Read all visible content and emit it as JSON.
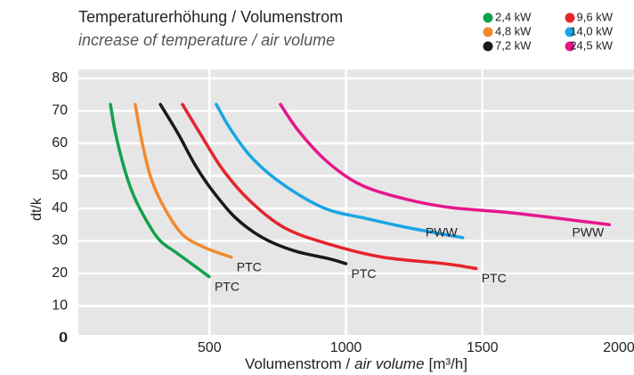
{
  "chart_data": {
    "type": "line",
    "title": "Temperaturerhöhung / Volumenstrom",
    "subtitle": "increase of temperature / air volume",
    "ylabel": "dt/k",
    "xlabel_parts": [
      "Volumenstrom /",
      "air volume",
      "[m³/h]"
    ],
    "xlim": [
      0,
      2000
    ],
    "xticks": [
      0,
      500,
      1000,
      1500,
      2000
    ],
    "ylim": [
      0,
      80
    ],
    "yticks": [
      0,
      10,
      20,
      30,
      40,
      50,
      60,
      70,
      80
    ],
    "grid": true,
    "legend": "top-right",
    "series": [
      {
        "name": "2,4 kW",
        "color": "#12a14b",
        "end_label": "PTC",
        "x": [
          137,
          156,
          189,
          222,
          271,
          320,
          385,
          499
        ],
        "values": [
          72,
          63,
          52,
          44,
          36,
          30,
          26,
          19
        ]
      },
      {
        "name": "4,8 kW",
        "color": "#f28a2e",
        "end_label": "PTC",
        "x": [
          228,
          254,
          287,
          336,
          401,
          482,
          580
        ],
        "values": [
          72,
          60,
          49,
          40,
          32,
          28,
          25
        ]
      },
      {
        "name": "7,2 kW",
        "color": "#1a1a1a",
        "end_label": "PTC",
        "x": [
          320,
          385,
          450,
          515,
          597,
          695,
          809,
          939,
          1000
        ],
        "values": [
          72,
          63,
          53,
          45,
          37,
          31,
          27,
          24.5,
          23
        ]
      },
      {
        "name": "9,6 kW",
        "color": "#e5242b",
        "end_label": "PTC",
        "x": [
          401,
          466,
          548,
          646,
          776,
          939,
          1135,
          1363,
          1477
        ],
        "values": [
          72,
          63,
          52,
          42.5,
          34,
          29,
          25,
          23,
          21.5
        ]
      },
      {
        "name": "14,0 kW",
        "color": "#1aa6e4",
        "end_label": "PWW",
        "x": [
          525,
          580,
          662,
          776,
          923,
          1069,
          1232,
          1428
        ],
        "values": [
          72,
          64,
          55,
          47,
          40,
          37,
          34,
          31
        ]
      },
      {
        "name": "24,5 kW",
        "color": "#e5178b",
        "end_label": "PWW",
        "x": [
          760,
          825,
          923,
          1037,
          1167,
          1363,
          1624,
          1965
        ],
        "values": [
          72,
          64,
          55,
          48,
          44,
          40.5,
          38.5,
          35
        ]
      }
    ]
  }
}
